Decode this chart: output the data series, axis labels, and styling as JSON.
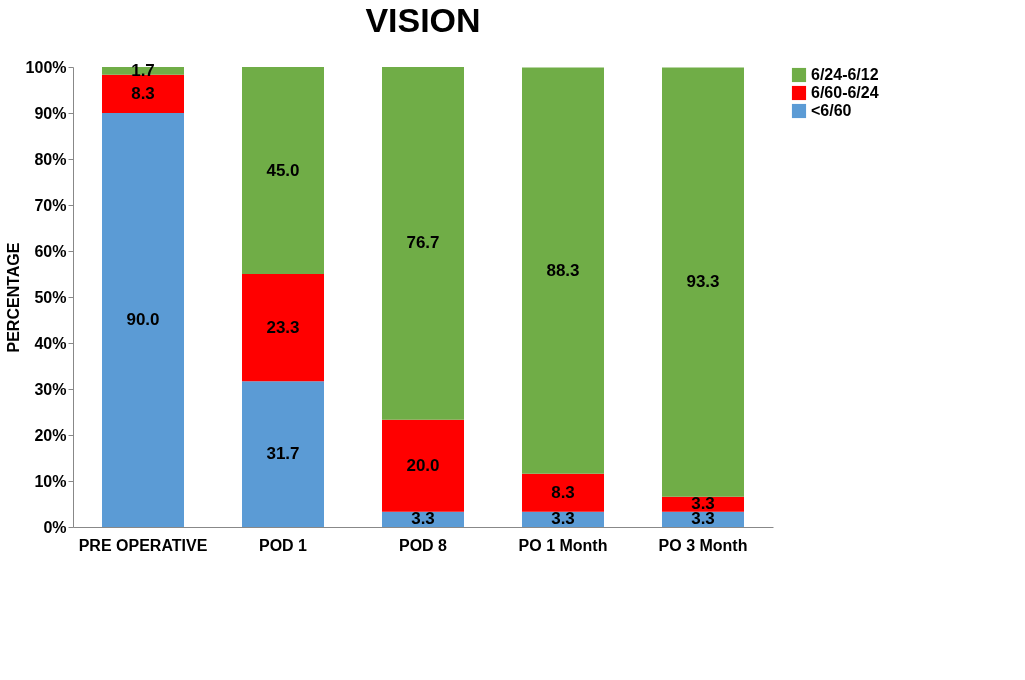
{
  "chart_data": {
    "type": "bar",
    "title": "VISION",
    "ylabel": "PERCENTAGE",
    "stacked": true,
    "categories": [
      "PRE OPERATIVE",
      "POD 1",
      "POD 8",
      "PO 1 Month",
      "PO 3 Month"
    ],
    "series": [
      {
        "name": "<6/60",
        "color": "#5b9bd5",
        "values": [
          90.0,
          31.7,
          3.3,
          3.3,
          3.3
        ],
        "value_labels": [
          "90.0",
          "31.7",
          "3.3",
          "3.3",
          "3.3"
        ]
      },
      {
        "name": "6/60-6/24",
        "color": "#ff0000",
        "values": [
          8.3,
          23.3,
          20.0,
          8.3,
          3.3
        ],
        "value_labels": [
          "8.3",
          "23.3",
          "20.0",
          "8.3",
          "3.3"
        ]
      },
      {
        "name": "6/24-6/12",
        "color": "#70ad47",
        "values": [
          1.7,
          45.0,
          76.7,
          88.3,
          93.3
        ],
        "value_labels": [
          "1.7",
          "45.0",
          "76.7",
          "88.3",
          "93.3"
        ]
      }
    ],
    "ylim": [
      0,
      100
    ],
    "yticks": [
      {
        "value": 0,
        "label": "0%"
      },
      {
        "value": 10,
        "label": "10%"
      },
      {
        "value": 20,
        "label": "20%"
      },
      {
        "value": 30,
        "label": "30%"
      },
      {
        "value": 40,
        "label": "40%"
      },
      {
        "value": 50,
        "label": "50%"
      },
      {
        "value": 60,
        "label": "60%"
      },
      {
        "value": 70,
        "label": "70%"
      },
      {
        "value": 80,
        "label": "80%"
      },
      {
        "value": 90,
        "label": "90%"
      },
      {
        "value": 100,
        "label": "100%"
      }
    ],
    "grid": false,
    "legend": "right"
  }
}
